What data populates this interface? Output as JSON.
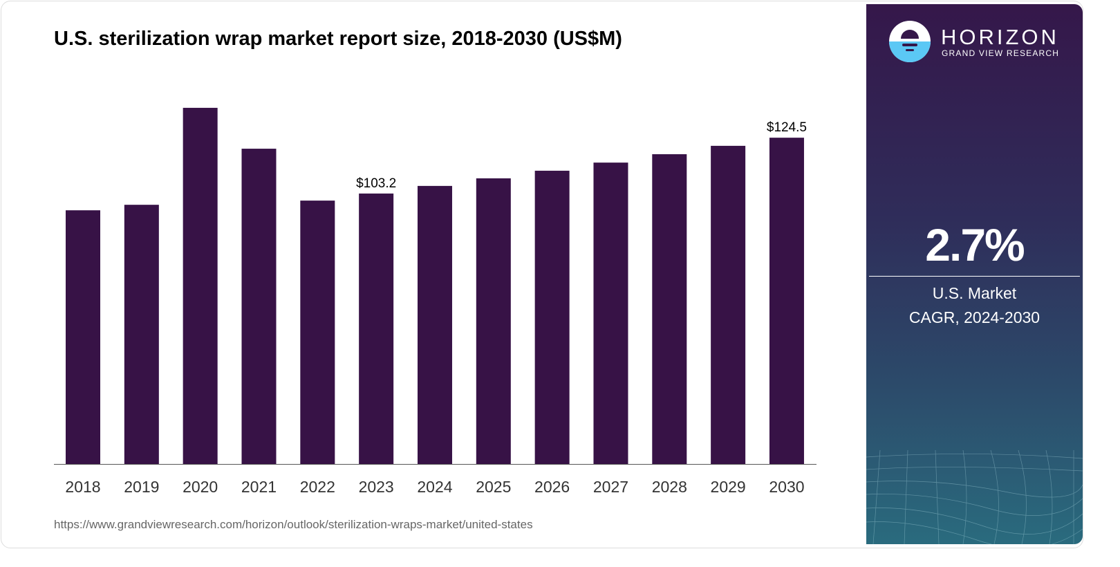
{
  "title": "U.S. sterilization wrap market report size, 2018-2030 (US$M)",
  "source_url": "https://www.grandviewresearch.com/horizon/outlook/sterilization-wraps-market/united-states",
  "panel": {
    "brand": "HORIZON",
    "brand_sub": "GRAND VIEW RESEARCH",
    "cagr_value": "2.7%",
    "cagr_label_1": "U.S. Market",
    "cagr_label_2": "CAGR, 2024-2030"
  },
  "colors": {
    "bar": "#371246",
    "accent": "#5bc8f5"
  },
  "chart_data": {
    "type": "bar",
    "title": "U.S. sterilization wrap market report size, 2018-2030 (US$M)",
    "categories": [
      "2018",
      "2019",
      "2020",
      "2021",
      "2022",
      "2023",
      "2024",
      "2025",
      "2026",
      "2027",
      "2028",
      "2029",
      "2030"
    ],
    "values": [
      96.8,
      98.9,
      135.9,
      120.3,
      100.5,
      103.2,
      106.1,
      109.0,
      111.9,
      115.0,
      118.2,
      121.4,
      124.5
    ],
    "data_labels": {
      "2023": "$103.2",
      "2030": "$124.5"
    },
    "xlabel": "",
    "ylabel": "",
    "ylim": [
      0,
      140
    ],
    "grid": false
  }
}
